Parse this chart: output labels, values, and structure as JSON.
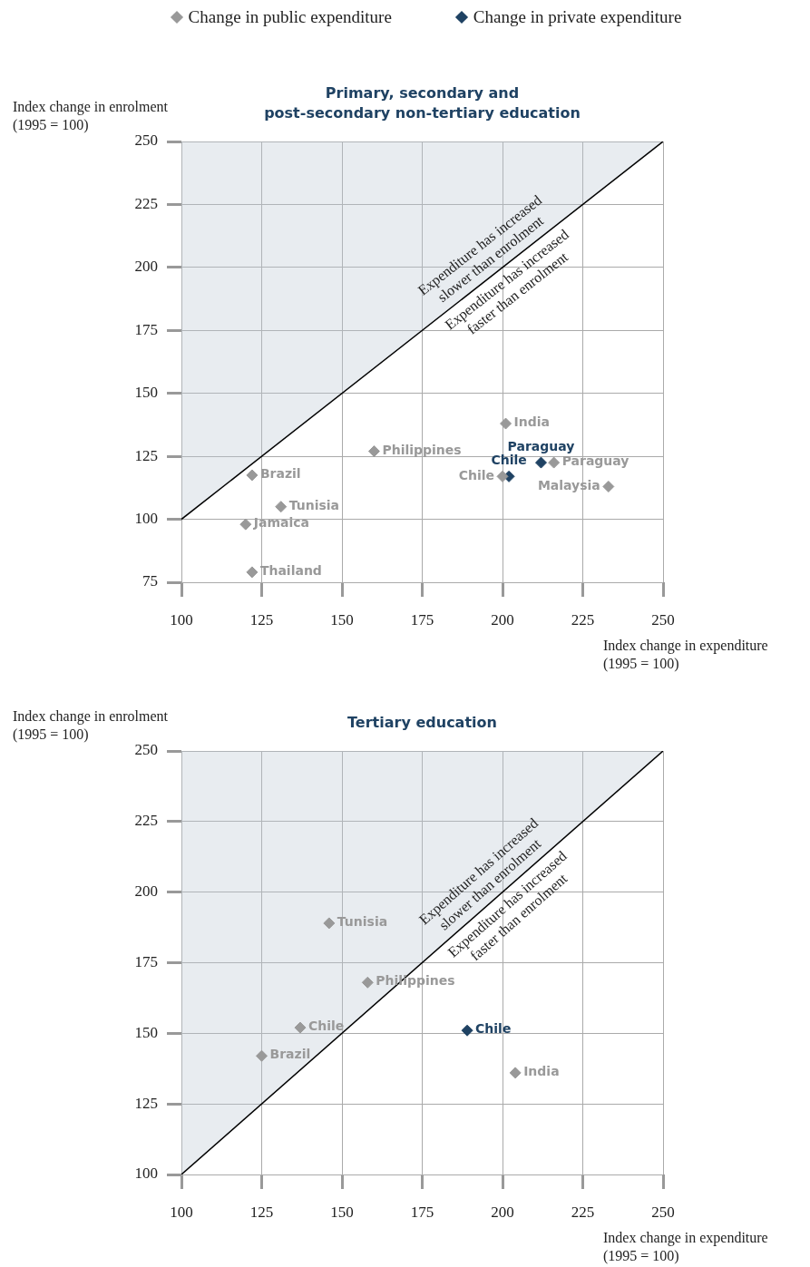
{
  "chart_data": [
    {
      "type": "scatter",
      "title": "Primary, secondary and\npost-secondary non-tertiary education",
      "xlabel": "Index change in expenditure\n(1995 = 100)",
      "ylabel": "Index change in enrolment\n(1995 = 100)",
      "series": [
        {
          "name": "Change in public expenditure",
          "color": "#999999",
          "marker": "diamond",
          "x": [
            122,
            131,
            120,
            122,
            160,
            201,
            200,
            216,
            233
          ],
          "values": [
            117.5,
            105,
            98,
            79,
            127,
            138,
            117,
            122.5,
            113
          ],
          "value_labels": [
            "Brazil",
            "Tunisia",
            "Jamaica",
            "Thailand",
            "Philippines",
            "India",
            "Chile",
            "Paraguay",
            "Malaysia"
          ]
        },
        {
          "name": "Change in private expenditure",
          "color": "#1f4263",
          "marker": "diamond",
          "x": [
            202,
            212
          ],
          "values": [
            117,
            122.5
          ],
          "value_labels": [
            "Chile",
            "Paraguay"
          ]
        },
        {
          "type": "line",
          "color": "#000000",
          "marker": "none",
          "x": [
            100,
            250
          ],
          "values": [
            100,
            250
          ]
        }
      ],
      "annotations": [
        "Expenditure has increased\nslower than enrolment",
        "Expenditure has increased\nfaster than enrolment"
      ],
      "xlim": [
        100,
        250
      ],
      "xticks": [
        100,
        125,
        150,
        175,
        200,
        225,
        250
      ],
      "ylim": [
        75,
        250
      ],
      "yticks": [
        75,
        100,
        125,
        150,
        175,
        200,
        225,
        250
      ],
      "grid": true,
      "legend": "top"
    },
    {
      "type": "scatter",
      "title": "Tertiary education",
      "xlabel": "Index change in expenditure\n(1995 = 100)",
      "ylabel": "Index change in enrolment\n(1995 = 100)",
      "series": [
        {
          "color": "#999999",
          "marker": "diamond",
          "x": [
            146,
            158,
            137,
            125,
            204
          ],
          "values": [
            189,
            168,
            152,
            142,
            136
          ],
          "value_labels": [
            "Tunisia",
            "Philippines",
            "Chile",
            "Brazil",
            "India"
          ]
        },
        {
          "color": "#1f4263",
          "marker": "diamond",
          "x": [
            189
          ],
          "values": [
            151
          ],
          "value_labels": [
            "Chile"
          ]
        },
        {
          "type": "line",
          "color": "#000000",
          "marker": "none",
          "x": [
            100,
            250
          ],
          "values": [
            100,
            250
          ]
        }
      ],
      "annotations": [
        "Expenditure has increased\nslower than enrolment",
        "Expenditure has increased\nfaster than enrolment"
      ],
      "xlim": [
        100,
        250
      ],
      "xticks": [
        100,
        125,
        150,
        175,
        200,
        225,
        250
      ],
      "ylim": [
        100,
        250
      ],
      "yticks": [
        100,
        125,
        150,
        175,
        200,
        225,
        250
      ],
      "grid": true
    }
  ]
}
